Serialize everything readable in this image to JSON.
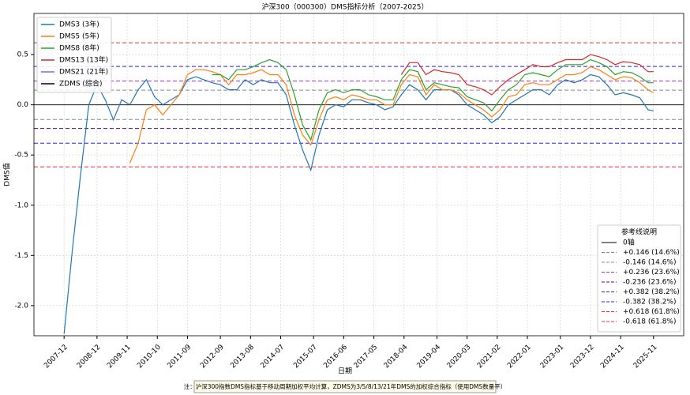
{
  "chart_data": {
    "type": "line",
    "title": "沪深300（000300）DMS指标分析（2007-2025）",
    "xlabel": "日期",
    "ylabel": "DMS值",
    "note": "注：沪深300指数DMS指标基于移动周期加权平均计算，ZDMS为3/5/8/13/21年DMS的加权综合指标（使用DMS数量平）",
    "grid": true,
    "legend": "upper left",
    "x": [
      "2007-12",
      "2008-03",
      "2008-06",
      "2008-09",
      "2008-12",
      "2009-03",
      "2009-06",
      "2009-09",
      "2009-12",
      "2010-03",
      "2010-06",
      "2010-09",
      "2010-12",
      "2011-03",
      "2011-06",
      "2011-09",
      "2011-12",
      "2012-03",
      "2012-06",
      "2012-09",
      "2012-12",
      "2013-03",
      "2013-06",
      "2013-09",
      "2013-12",
      "2014-03",
      "2014-06",
      "2014-09",
      "2014-12",
      "2015-03",
      "2015-06",
      "2015-09",
      "2015-12",
      "2016-03",
      "2016-06",
      "2016-09",
      "2016-12",
      "2017-03",
      "2017-06",
      "2017-09",
      "2017-12",
      "2018-03",
      "2018-06",
      "2018-09",
      "2018-12",
      "2019-03",
      "2019-06",
      "2019-09",
      "2019-12",
      "2020-03",
      "2020-06",
      "2020-09",
      "2020-12",
      "2021-03",
      "2021-06",
      "2021-09",
      "2021-12",
      "2022-03",
      "2022-06",
      "2022-09",
      "2022-12",
      "2023-03",
      "2023-06",
      "2023-09",
      "2023-12",
      "2024-03",
      "2024-06",
      "2024-09",
      "2024-12",
      "2025-03",
      "2025-06",
      "2025-09",
      "2025-11"
    ],
    "xlim": [
      "2007-01",
      "2026-10"
    ],
    "xticks": [
      "2007-12",
      "2008-12",
      "2009-11",
      "2010-10",
      "2011-09",
      "2012-09",
      "2013-08",
      "2014-07",
      "2015-07",
      "2016-06",
      "2017-05",
      "2018-04",
      "2019-04",
      "2020-03",
      "2021-02",
      "2022-01",
      "2023-01",
      "2023-12",
      "2024-11",
      "2025-11"
    ],
    "ylim": [
      -2.3,
      0.91
    ],
    "yticks": [
      0.5,
      {
        "value": 0,
        "label": "0.0"
      },
      -0.5,
      {
        "value": -1,
        "label": "-1.0"
      },
      -1.5,
      {
        "value": -2,
        "label": "-2.0"
      }
    ],
    "series": [
      {
        "name": "DMS3 (3年)",
        "color": "#1f77b4",
        "values": [
          -2.28,
          -1.45,
          -0.7,
          0.0,
          0.2,
          0.05,
          -0.15,
          0.05,
          0.0,
          0.15,
          0.25,
          0.08,
          0.0,
          0.05,
          0.1,
          0.25,
          0.28,
          0.25,
          0.22,
          0.2,
          0.15,
          0.15,
          0.25,
          0.2,
          0.25,
          0.22,
          0.22,
          0.1,
          -0.2,
          -0.45,
          -0.65,
          -0.3,
          -0.05,
          0.0,
          -0.02,
          0.05,
          0.05,
          0.02,
          0.0,
          -0.05,
          -0.02,
          0.1,
          0.2,
          0.15,
          0.05,
          0.15,
          0.15,
          0.15,
          0.1,
          0.0,
          -0.05,
          -0.1,
          -0.18,
          -0.12,
          0.0,
          0.05,
          0.1,
          0.15,
          0.15,
          0.1,
          0.2,
          0.25,
          0.22,
          0.25,
          0.3,
          0.28,
          0.2,
          0.1,
          0.12,
          0.1,
          0.07,
          -0.05,
          -0.06
        ]
      },
      {
        "name": "DMS5 (5年)",
        "color": "#ff7f0e",
        "values": [
          null,
          null,
          null,
          null,
          null,
          null,
          null,
          null,
          -0.58,
          -0.38,
          -0.05,
          0.0,
          -0.1,
          0.0,
          0.1,
          0.3,
          0.35,
          0.35,
          0.33,
          0.3,
          0.2,
          0.3,
          0.3,
          0.32,
          0.35,
          0.3,
          0.3,
          0.2,
          -0.1,
          -0.3,
          -0.4,
          -0.15,
          0.05,
          0.08,
          0.05,
          0.1,
          0.08,
          0.05,
          0.05,
          0.0,
          0.0,
          0.2,
          0.3,
          0.28,
          0.1,
          0.2,
          0.15,
          0.15,
          0.12,
          0.05,
          0.0,
          -0.05,
          -0.12,
          -0.05,
          0.08,
          0.1,
          0.2,
          0.22,
          0.2,
          0.2,
          0.25,
          0.3,
          0.3,
          0.32,
          0.38,
          0.35,
          0.3,
          0.25,
          0.28,
          0.27,
          0.22,
          0.15,
          0.12
        ]
      },
      {
        "name": "DMS8 (8年)",
        "color": "#2ca02c",
        "values": [
          null,
          null,
          null,
          null,
          null,
          null,
          null,
          null,
          null,
          null,
          null,
          null,
          null,
          null,
          null,
          null,
          null,
          null,
          0.3,
          0.3,
          0.25,
          0.35,
          0.35,
          0.38,
          0.42,
          0.45,
          0.42,
          0.35,
          0.1,
          -0.2,
          -0.35,
          -0.05,
          0.12,
          0.15,
          0.12,
          0.15,
          0.15,
          0.1,
          0.08,
          0.05,
          0.05,
          0.25,
          0.35,
          0.33,
          0.15,
          0.22,
          0.2,
          0.18,
          0.17,
          0.08,
          0.05,
          0.02,
          -0.06,
          0.05,
          0.15,
          0.2,
          0.3,
          0.32,
          0.3,
          0.28,
          0.35,
          0.4,
          0.4,
          0.4,
          0.45,
          0.42,
          0.38,
          0.3,
          0.33,
          0.32,
          0.28,
          0.22,
          0.22
        ]
      },
      {
        "name": "DMS13 (13年)",
        "color": "#d62728",
        "values": [
          null,
          null,
          null,
          null,
          null,
          null,
          null,
          null,
          null,
          null,
          null,
          null,
          null,
          null,
          null,
          null,
          null,
          null,
          null,
          null,
          null,
          null,
          null,
          null,
          null,
          null,
          null,
          null,
          null,
          null,
          null,
          null,
          null,
          null,
          null,
          null,
          null,
          null,
          null,
          null,
          null,
          0.3,
          0.42,
          0.42,
          0.3,
          0.35,
          0.33,
          0.32,
          0.3,
          0.2,
          0.18,
          0.15,
          0.1,
          0.18,
          0.25,
          0.3,
          0.35,
          0.4,
          0.38,
          0.38,
          0.42,
          0.45,
          0.45,
          0.45,
          0.5,
          0.48,
          0.45,
          0.4,
          0.43,
          0.42,
          0.4,
          0.33,
          0.33
        ]
      },
      {
        "name": "DMS21 (21年)",
        "color": "#9467bd"
      },
      {
        "name": "ZDMS (综合)",
        "color": "#000000"
      }
    ],
    "reference_legend_title": "参考线说明",
    "reference_lines": [
      {
        "value": 0,
        "label": "0轴",
        "color": "#000000",
        "dashed": false
      },
      {
        "value": 0.146,
        "label": "+0.146 (14.6%)",
        "color": "#888888",
        "dashed": true
      },
      {
        "value": -0.146,
        "label": "-0.146 (14.6%)",
        "color": "#888888",
        "dashed": true
      },
      {
        "value": 0.236,
        "label": "+0.236 (23.6%)",
        "color": "#9b30c0",
        "dashed": true
      },
      {
        "value": -0.236,
        "label": "-0.236 (23.6%)",
        "color": "#5a0080",
        "dashed": true
      },
      {
        "value": 0.382,
        "label": "+0.382 (38.2%)",
        "color": "#2020ee",
        "dashed": true
      },
      {
        "value": -0.382,
        "label": "-0.382 (38.2%)",
        "color": "#2020ee",
        "dashed": true
      },
      {
        "value": 0.618,
        "label": "+0.618 (61.8%)",
        "color": "#e03030",
        "dashed": true
      },
      {
        "value": -0.618,
        "label": "-0.618 (61.8%)",
        "color": "#e03030",
        "dashed": true
      }
    ]
  }
}
